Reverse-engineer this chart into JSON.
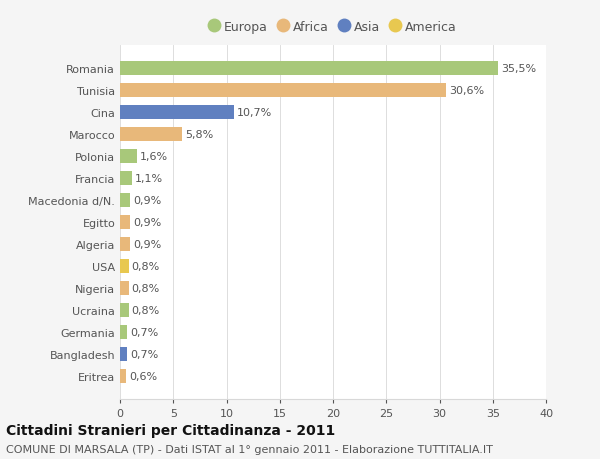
{
  "categories": [
    "Romania",
    "Tunisia",
    "Cina",
    "Marocco",
    "Polonia",
    "Francia",
    "Macedonia d/N.",
    "Egitto",
    "Algeria",
    "USA",
    "Nigeria",
    "Ucraina",
    "Germania",
    "Bangladesh",
    "Eritrea"
  ],
  "values": [
    35.5,
    30.6,
    10.7,
    5.8,
    1.6,
    1.1,
    0.9,
    0.9,
    0.9,
    0.8,
    0.8,
    0.8,
    0.7,
    0.7,
    0.6
  ],
  "labels": [
    "35,5%",
    "30,6%",
    "10,7%",
    "5,8%",
    "1,6%",
    "1,1%",
    "0,9%",
    "0,9%",
    "0,9%",
    "0,8%",
    "0,8%",
    "0,8%",
    "0,7%",
    "0,7%",
    "0,6%"
  ],
  "continents": [
    "Europa",
    "Africa",
    "Asia",
    "Africa",
    "Europa",
    "Europa",
    "Europa",
    "Africa",
    "Africa",
    "America",
    "Africa",
    "Europa",
    "Europa",
    "Asia",
    "Africa"
  ],
  "colors": {
    "Europa": "#a8c87a",
    "Africa": "#e8b87a",
    "Asia": "#6080c0",
    "America": "#e8c850"
  },
  "legend_order": [
    "Europa",
    "Africa",
    "Asia",
    "America"
  ],
  "xlim": [
    0,
    40
  ],
  "xticks": [
    0,
    5,
    10,
    15,
    20,
    25,
    30,
    35,
    40
  ],
  "title": "Cittadini Stranieri per Cittadinanza - 2011",
  "subtitle": "COMUNE DI MARSALA (TP) - Dati ISTAT al 1° gennaio 2011 - Elaborazione TUTTITALIA.IT",
  "background_color": "#f5f5f5",
  "bar_background": "#ffffff",
  "grid_color": "#d8d8d8",
  "text_color": "#555555",
  "title_fontsize": 10,
  "subtitle_fontsize": 8,
  "tick_fontsize": 8,
  "label_fontsize": 8,
  "legend_fontsize": 9
}
